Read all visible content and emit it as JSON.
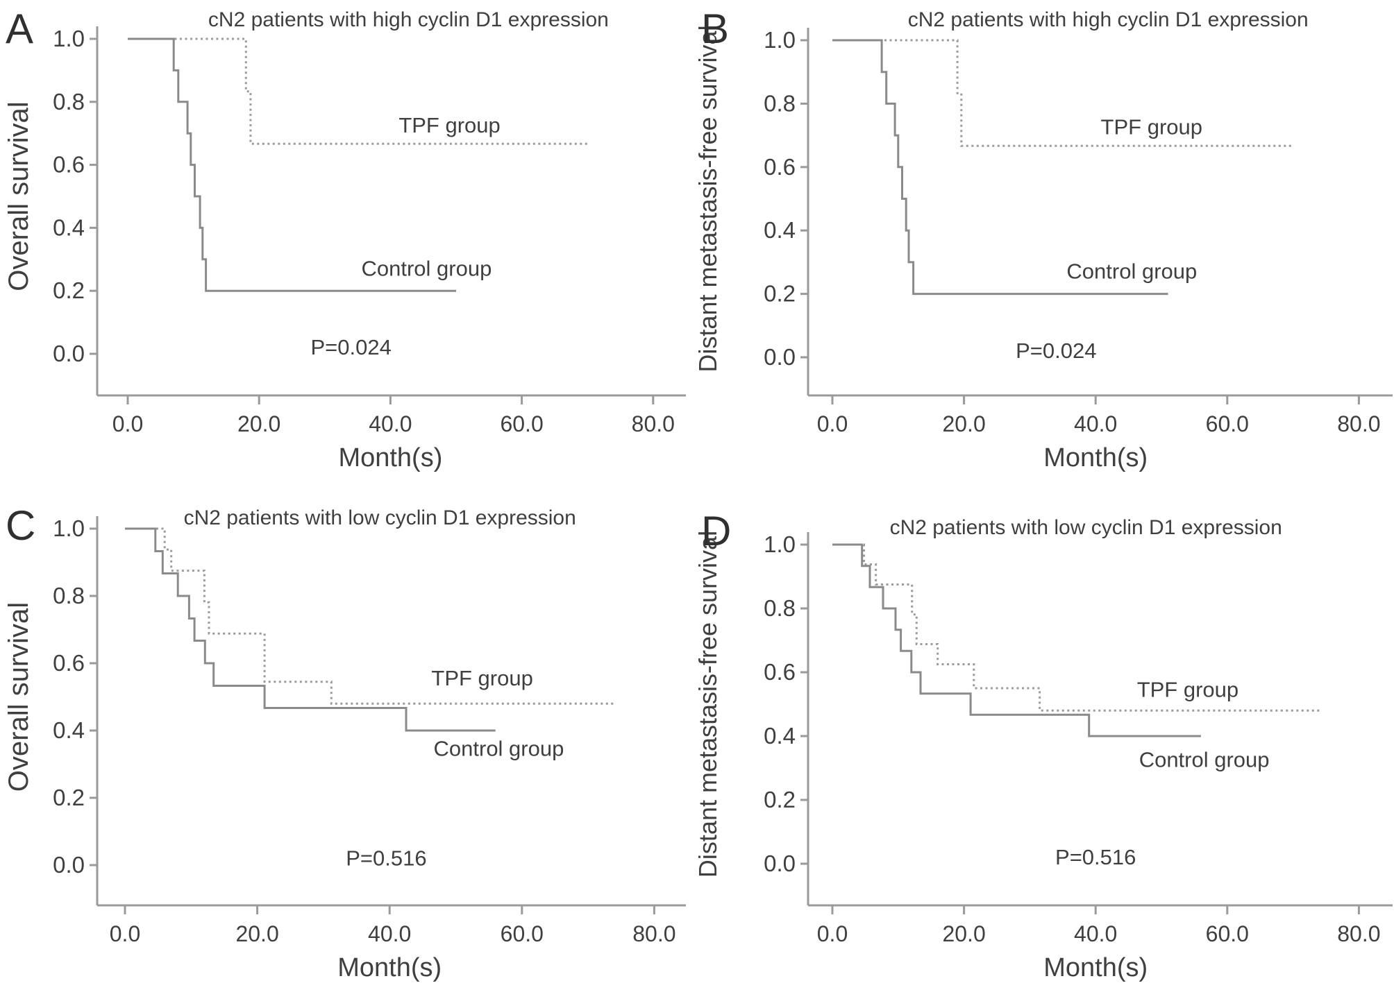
{
  "figure_background": "#ffffff",
  "text_color": "#3f3f3f",
  "axis_color": "#9a9a9a",
  "chart_data": [
    {
      "type": "line",
      "panel_label": "A",
      "title": "cN2 patients with high cyclin D1 expression",
      "xlabel": "Month(s)",
      "ylabel": "Overall survival",
      "x_tick_labels": [
        "0.0",
        "20.0",
        "40.0",
        "60.0",
        "80.0"
      ],
      "x_tick_values": [
        0,
        20,
        40,
        60,
        80
      ],
      "y_tick_labels": [
        "1.0",
        "0.8",
        "0.6",
        "0.4",
        "0.2",
        "0.0"
      ],
      "y_tick_values": [
        1.0,
        0.8,
        0.6,
        0.4,
        0.2,
        0.0
      ],
      "xlim": [
        0,
        84
      ],
      "ylim": [
        0,
        1
      ],
      "grid": false,
      "legend_position": "inline-labels",
      "annotation": {
        "text": "P=0.024",
        "x": 34,
        "y": 0.02
      },
      "series": [
        {
          "name": "TPF group",
          "line_style": "dotted",
          "color": "#9b9b9b",
          "label_x": 49,
          "label_y": 0.725,
          "points": [
            [
              0,
              1
            ],
            [
              18,
              1
            ],
            [
              18,
              0.833
            ],
            [
              18.7,
              0.833
            ],
            [
              18.7,
              0.667
            ],
            [
              70,
              0.667
            ]
          ]
        },
        {
          "name": "Control group",
          "line_style": "solid",
          "color": "#8a8a8a",
          "label_x": 45.5,
          "label_y": 0.27,
          "points": [
            [
              0,
              1
            ],
            [
              7,
              1
            ],
            [
              7,
              0.9
            ],
            [
              7.7,
              0.9
            ],
            [
              7.7,
              0.8
            ],
            [
              9.1,
              0.8
            ],
            [
              9.1,
              0.7
            ],
            [
              9.6,
              0.7
            ],
            [
              9.6,
              0.6
            ],
            [
              10.2,
              0.6
            ],
            [
              10.2,
              0.5
            ],
            [
              11,
              0.5
            ],
            [
              11,
              0.4
            ],
            [
              11.4,
              0.4
            ],
            [
              11.4,
              0.3
            ],
            [
              11.9,
              0.3
            ],
            [
              11.9,
              0.2
            ],
            [
              50,
              0.2
            ]
          ]
        }
      ]
    },
    {
      "type": "line",
      "panel_label": "B",
      "title": "cN2 patients with high cyclin D1 expression",
      "xlabel": "Month(s)",
      "ylabel": "Distant metastasis-free survival",
      "x_tick_labels": [
        "0.0",
        "20.0",
        "40.0",
        "60.0",
        "80.0"
      ],
      "x_tick_values": [
        0,
        20,
        40,
        60,
        80
      ],
      "y_tick_labels": [
        "1.0",
        "0.8",
        "0.6",
        "0.4",
        "0.2",
        "0.0"
      ],
      "y_tick_values": [
        1.0,
        0.8,
        0.6,
        0.4,
        0.2,
        0.0
      ],
      "xlim": [
        0,
        84
      ],
      "ylim": [
        0,
        1
      ],
      "grid": false,
      "legend_position": "inline-labels",
      "annotation": {
        "text": "P=0.024",
        "x": 34,
        "y": 0.02
      },
      "series": [
        {
          "name": "TPF group",
          "line_style": "dotted",
          "color": "#9b9b9b",
          "label_x": 48.5,
          "label_y": 0.725,
          "points": [
            [
              0,
              1
            ],
            [
              19,
              1
            ],
            [
              19,
              0.833
            ],
            [
              19.6,
              0.833
            ],
            [
              19.6,
              0.667
            ],
            [
              70,
              0.667
            ]
          ]
        },
        {
          "name": "Control group",
          "line_style": "solid",
          "color": "#8a8a8a",
          "label_x": 45.5,
          "label_y": 0.27,
          "points": [
            [
              0,
              1
            ],
            [
              7.5,
              1
            ],
            [
              7.5,
              0.9
            ],
            [
              8.2,
              0.9
            ],
            [
              8.2,
              0.8
            ],
            [
              9.5,
              0.8
            ],
            [
              9.5,
              0.7
            ],
            [
              10,
              0.7
            ],
            [
              10,
              0.6
            ],
            [
              10.6,
              0.6
            ],
            [
              10.6,
              0.5
            ],
            [
              11.2,
              0.5
            ],
            [
              11.2,
              0.4
            ],
            [
              11.6,
              0.4
            ],
            [
              11.6,
              0.3
            ],
            [
              12.3,
              0.3
            ],
            [
              12.3,
              0.2
            ],
            [
              51,
              0.2
            ]
          ]
        }
      ]
    },
    {
      "type": "line",
      "panel_label": "C",
      "title": "cN2 patients with low cyclin D1 expression",
      "xlabel": "Month(s)",
      "ylabel": "Overall survival",
      "x_tick_labels": [
        "0.0",
        "20.0",
        "40.0",
        "60.0",
        "80.0"
      ],
      "x_tick_values": [
        0,
        20,
        40,
        60,
        80
      ],
      "y_tick_labels": [
        "1.0",
        "0.8",
        "0.6",
        "0.4",
        "0.2",
        "0.0"
      ],
      "y_tick_values": [
        1.0,
        0.8,
        0.6,
        0.4,
        0.2,
        0.0
      ],
      "xlim": [
        0,
        84
      ],
      "ylim": [
        0,
        1
      ],
      "grid": false,
      "legend_position": "inline-labels",
      "annotation": {
        "text": "P=0.516",
        "x": 39.5,
        "y": 0.02
      },
      "series": [
        {
          "name": "TPF group",
          "line_style": "dotted",
          "color": "#9b9b9b",
          "label_x": 54,
          "label_y": 0.555,
          "points": [
            [
              0,
              1
            ],
            [
              6,
              1
            ],
            [
              6,
              0.938
            ],
            [
              7,
              0.938
            ],
            [
              7,
              0.875
            ],
            [
              12,
              0.875
            ],
            [
              12,
              0.781
            ],
            [
              12.7,
              0.781
            ],
            [
              12.7,
              0.688
            ],
            [
              21.1,
              0.688
            ],
            [
              21.1,
              0.545
            ],
            [
              31.2,
              0.545
            ],
            [
              31.2,
              0.48
            ],
            [
              74,
              0.48
            ]
          ]
        },
        {
          "name": "Control group",
          "line_style": "solid",
          "color": "#8a8a8a",
          "label_x": 56.5,
          "label_y": 0.345,
          "points": [
            [
              0,
              1
            ],
            [
              4.6,
              1
            ],
            [
              4.6,
              0.933
            ],
            [
              5.7,
              0.933
            ],
            [
              5.7,
              0.867
            ],
            [
              8,
              0.867
            ],
            [
              8,
              0.8
            ],
            [
              9.7,
              0.8
            ],
            [
              9.7,
              0.733
            ],
            [
              10.5,
              0.733
            ],
            [
              10.5,
              0.667
            ],
            [
              12.1,
              0.667
            ],
            [
              12.1,
              0.6
            ],
            [
              13.4,
              0.6
            ],
            [
              13.4,
              0.533
            ],
            [
              21.1,
              0.533
            ],
            [
              21.1,
              0.467
            ],
            [
              42.5,
              0.467
            ],
            [
              42.5,
              0.4
            ],
            [
              56,
              0.4
            ]
          ]
        }
      ]
    },
    {
      "type": "line",
      "panel_label": "D",
      "title": "cN2 patients with low cyclin D1 expression",
      "xlabel": "Month(s)",
      "ylabel": "Distant metastasis-free survival",
      "x_tick_labels": [
        "0.0",
        "20.0",
        "40.0",
        "60.0",
        "80.0"
      ],
      "x_tick_values": [
        0,
        20,
        40,
        60,
        80
      ],
      "y_tick_labels": [
        "1.0",
        "0.8",
        "0.6",
        "0.4",
        "0.2",
        "0.0"
      ],
      "y_tick_values": [
        1.0,
        0.8,
        0.6,
        0.4,
        0.2,
        0.0
      ],
      "xlim": [
        0,
        84
      ],
      "ylim": [
        0,
        1
      ],
      "grid": false,
      "legend_position": "inline-labels",
      "annotation": {
        "text": "P=0.516",
        "x": 40,
        "y": 0.02
      },
      "series": [
        {
          "name": "TPF group",
          "line_style": "dotted",
          "color": "#9b9b9b",
          "label_x": 54,
          "label_y": 0.545,
          "points": [
            [
              0,
              1
            ],
            [
              4.8,
              1
            ],
            [
              4.8,
              0.938
            ],
            [
              6.6,
              0.938
            ],
            [
              6.6,
              0.875
            ],
            [
              12.1,
              0.875
            ],
            [
              12.1,
              0.781
            ],
            [
              12.8,
              0.781
            ],
            [
              12.8,
              0.688
            ],
            [
              16,
              0.688
            ],
            [
              16,
              0.625
            ],
            [
              21.5,
              0.625
            ],
            [
              21.5,
              0.55
            ],
            [
              31.5,
              0.55
            ],
            [
              31.5,
              0.48
            ],
            [
              74,
              0.48
            ]
          ]
        },
        {
          "name": "Control group",
          "line_style": "solid",
          "color": "#8a8a8a",
          "label_x": 56.5,
          "label_y": 0.325,
          "points": [
            [
              0,
              1
            ],
            [
              4.5,
              1
            ],
            [
              4.5,
              0.933
            ],
            [
              5.7,
              0.933
            ],
            [
              5.7,
              0.867
            ],
            [
              7.7,
              0.867
            ],
            [
              7.7,
              0.8
            ],
            [
              9.6,
              0.8
            ],
            [
              9.6,
              0.733
            ],
            [
              10.4,
              0.733
            ],
            [
              10.4,
              0.667
            ],
            [
              12,
              0.667
            ],
            [
              12,
              0.6
            ],
            [
              13.4,
              0.6
            ],
            [
              13.4,
              0.533
            ],
            [
              21,
              0.533
            ],
            [
              21,
              0.467
            ],
            [
              39,
              0.467
            ],
            [
              39,
              0.4
            ],
            [
              56,
              0.4
            ]
          ]
        }
      ]
    }
  ]
}
